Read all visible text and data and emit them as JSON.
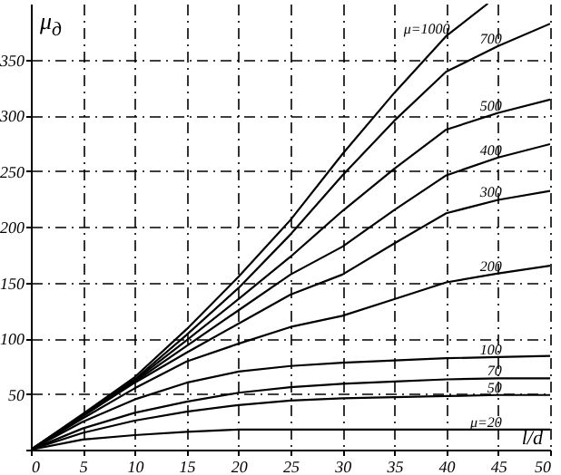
{
  "chart_data": {
    "type": "line",
    "xlabel": "l/d",
    "ylabel": "μ$_{д}$",
    "x": [
      0,
      5,
      10,
      15,
      20,
      25,
      30,
      35,
      40,
      45,
      50
    ],
    "xlim": [
      0,
      50
    ],
    "ylim": [
      0,
      400
    ],
    "xticks": [
      0,
      5,
      10,
      15,
      20,
      25,
      30,
      35,
      40,
      45,
      50
    ],
    "yticks": [
      {
        "value": 0,
        "label": null
      },
      50,
      100,
      150,
      200,
      250,
      300,
      350
    ],
    "grid": true,
    "series": [
      {
        "name": "μ=1000",
        "color": "#000000",
        "x": [
          0,
          5,
          10,
          15,
          20,
          25,
          30,
          35,
          40,
          44
        ],
        "values": [
          0,
          32,
          65,
          108,
          155,
          206,
          265,
          320,
          371,
          400
        ]
      },
      {
        "name": "700",
        "color": "#000000",
        "values": [
          0,
          31,
          63,
          103,
          145,
          193,
          246,
          295,
          339,
          362,
          382
        ]
      },
      {
        "name": "500",
        "color": "#000000",
        "values": [
          0,
          31,
          62,
          98,
          135,
          173,
          214,
          252,
          287,
          302,
          314
        ]
      },
      {
        "name": "400",
        "color": "#000000",
        "values": [
          0,
          30,
          61,
          93,
          125,
          157,
          182,
          215,
          246,
          262,
          274
        ]
      },
      {
        "name": "300",
        "color": "#000000",
        "values": [
          0,
          30,
          60,
          87,
          113,
          139,
          157,
          185,
          212,
          224,
          232
        ]
      },
      {
        "name": "200",
        "color": "#000000",
        "values": [
          0,
          28,
          55,
          79,
          95,
          110,
          120,
          135,
          150,
          158,
          165
        ]
      },
      {
        "name": "100",
        "color": "#000000",
        "values": [
          0,
          25,
          45,
          60,
          70,
          75,
          78,
          80,
          82,
          83,
          84
        ]
      },
      {
        "name": "70",
        "color": "#000000",
        "values": [
          0,
          19,
          33,
          43,
          51,
          56,
          59,
          61,
          63,
          64,
          64
        ]
      },
      {
        "name": "50",
        "color": "#000000",
        "values": [
          0,
          15,
          26,
          34,
          40,
          44,
          46,
          47,
          48,
          49,
          49
        ]
      },
      {
        "name": "μ=20",
        "color": "#000000",
        "values": [
          0,
          9,
          13,
          16,
          18,
          18,
          18,
          18,
          18,
          18,
          18
        ]
      }
    ]
  }
}
